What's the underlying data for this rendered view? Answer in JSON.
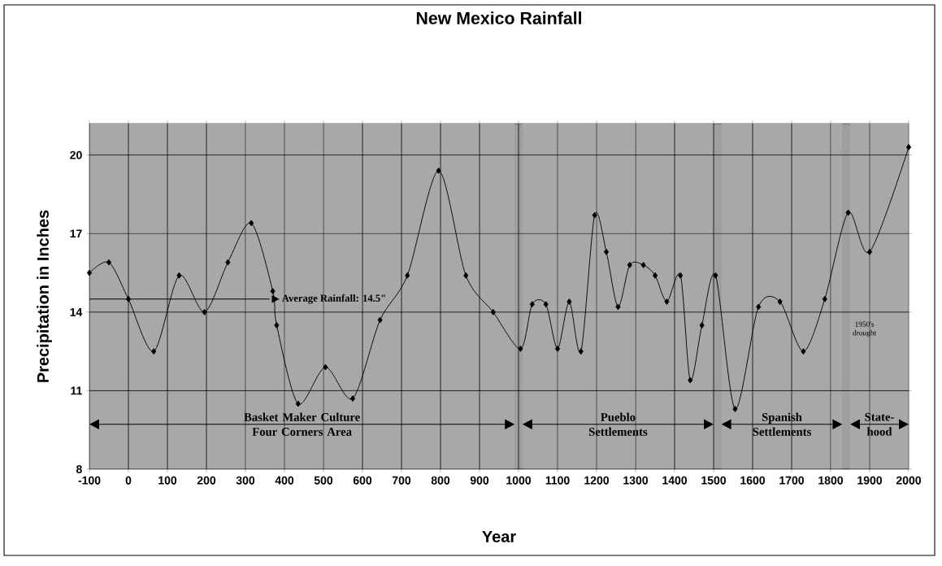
{
  "chart_data": {
    "type": "line",
    "title": "New Mexico Rainfall",
    "xlabel": "Year",
    "ylabel": "Precipitation in Inches",
    "x": [
      -100,
      -50,
      0,
      65,
      130,
      195,
      255,
      315,
      370,
      380,
      435,
      505,
      575,
      645,
      715,
      795,
      865,
      935,
      1005,
      1035,
      1070,
      1100,
      1130,
      1160,
      1195,
      1225,
      1255,
      1285,
      1320,
      1350,
      1380,
      1415,
      1440,
      1470,
      1505,
      1555,
      1615,
      1670,
      1730,
      1785,
      1845,
      1900,
      2000
    ],
    "series": [
      {
        "color": "#000000",
        "values": [
          15.5,
          15.9,
          14.5,
          12.5,
          15.4,
          14.0,
          15.9,
          17.4,
          14.8,
          13.5,
          10.5,
          11.9,
          10.7,
          13.7,
          15.4,
          19.4,
          15.4,
          14.0,
          12.6,
          14.3,
          14.3,
          12.6,
          14.4,
          12.5,
          17.7,
          16.3,
          14.2,
          15.8,
          15.8,
          15.4,
          14.4,
          15.4,
          11.4,
          13.5,
          15.4,
          10.3,
          14.2,
          14.4,
          12.5,
          14.5,
          17.8,
          16.3,
          20.3
        ]
      }
    ],
    "xlim": [
      -100,
      2000
    ],
    "ylim": [
      8,
      21.2
    ],
    "xticks": [
      -100,
      0,
      100,
      200,
      300,
      400,
      500,
      600,
      700,
      800,
      900,
      1000,
      1100,
      1200,
      1300,
      1400,
      1500,
      1600,
      1700,
      1800,
      1900,
      2000
    ],
    "yticks": [
      8,
      11,
      14,
      17,
      20
    ],
    "grid": true,
    "marker": "diamond",
    "line_style": "solid",
    "ref_lines": [
      {
        "axis": "y",
        "value": 14.5,
        "label": "Average Rainfall: 14.5\""
      }
    ],
    "bands": [
      {
        "axis": "x",
        "from": -100,
        "to": 990,
        "label": "Basket Maker Culture Four Corners Area",
        "color": "#a8a8a8"
      },
      {
        "axis": "x",
        "from": 1010,
        "to": 1500,
        "label": "Pueblo Settlements",
        "color": "#a8a8a8"
      },
      {
        "axis": "x",
        "from": 1520,
        "to": 1830,
        "label": "Spanish Settlements",
        "color": "#a8a8a8"
      },
      {
        "axis": "x",
        "from": 1850,
        "to": 2000,
        "label": "State-hood",
        "color": "#a8a8a8"
      }
    ],
    "annotations": [
      "1950's drought"
    ]
  }
}
